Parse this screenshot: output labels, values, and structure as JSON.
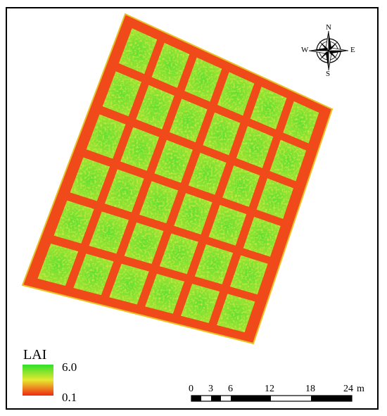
{
  "legend": {
    "title": "LAI",
    "max_label": "6.0",
    "min_label": "0.1",
    "colors": {
      "high": "#2fe02a",
      "mid": "#e8e830",
      "low": "#f02810"
    }
  },
  "compass": {
    "north": "N",
    "south": "S",
    "east": "E",
    "west": "W"
  },
  "scale_bar": {
    "ticks": [
      "0",
      "3",
      "6",
      "12",
      "18",
      "24"
    ],
    "unit": "m"
  },
  "colors": {
    "field_background": "#f04a1a",
    "plot_green": "#6fe02f",
    "plot_yellow": "#c8e83a"
  },
  "plot_grid": {
    "rows": 6,
    "cols": 6
  }
}
